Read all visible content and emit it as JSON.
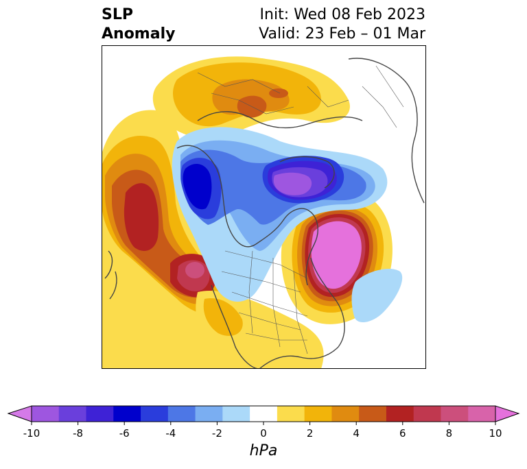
{
  "title": {
    "left_line1": "SLP",
    "left_line2": "Anomaly",
    "init": "Init: Wed 08 Feb 2023",
    "valid": "Valid: 23 Feb – 01 Mar"
  },
  "colorbar": {
    "ticks": [
      "-10",
      "-8",
      "-6",
      "-4",
      "-2",
      "0",
      "2",
      "4",
      "6",
      "8",
      "10"
    ],
    "unit": "hPa",
    "colors": [
      "#d57ae8",
      "#9e56e0",
      "#6a3fdc",
      "#3e22d6",
      "#0000cc",
      "#2a3ddc",
      "#4d77e6",
      "#7aaef2",
      "#abd9f9",
      "#ffffff",
      "#fbdc4c",
      "#f2b40a",
      "#e08b10",
      "#c85a18",
      "#b22222",
      "#c0384f",
      "#cc4f7c",
      "#d863aa",
      "#e571dc"
    ]
  },
  "map": {
    "type": "filled-contour-map",
    "projection": "north-polar-stereographic",
    "variable": "SLP anomaly"
  }
}
